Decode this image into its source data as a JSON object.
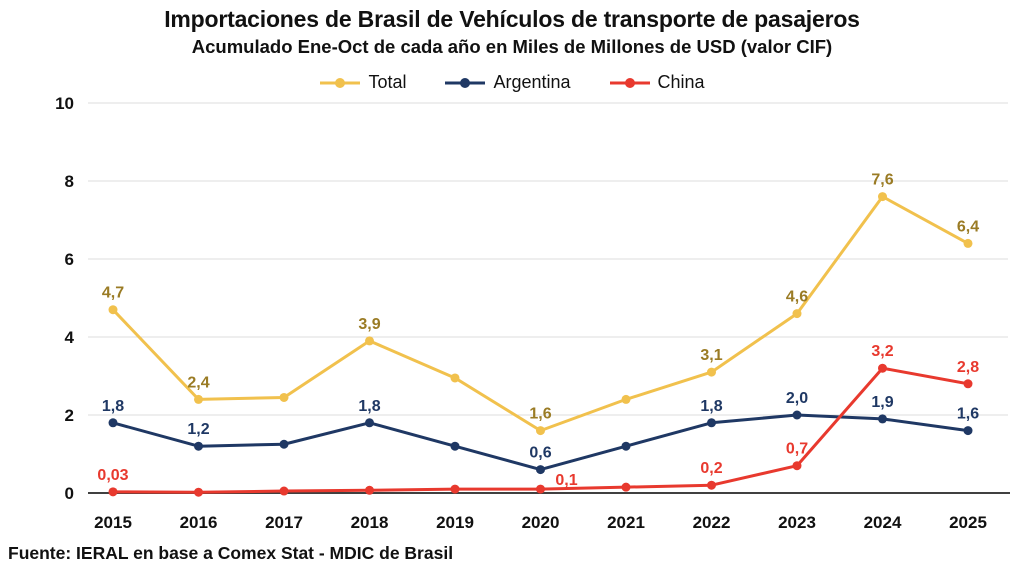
{
  "header": {
    "title": "Importaciones de Brasil de Vehículos de transporte de pasajeros",
    "subtitle": "Acumulado Ene-Oct de cada año en Miles de Millones de USD (valor CIF)"
  },
  "footer": {
    "source": "Fuente: IERAL en base a Comex Stat - MDIC de Brasil"
  },
  "chart_data": {
    "type": "line",
    "title": "Importaciones de Brasil de Vehículos de transporte de pasajeros",
    "subtitle": "Acumulado Ene-Oct de cada año en Miles de Millones de USD (valor CIF)",
    "xlabel": "",
    "ylabel": "",
    "categories": [
      "2015",
      "2016",
      "2017",
      "2018",
      "2019",
      "2020",
      "2021",
      "2022",
      "2023",
      "2024",
      "2025"
    ],
    "series": [
      {
        "name": "Total",
        "color": "#F1C14D",
        "label_color": "#9A7B24",
        "values": [
          4.7,
          2.4,
          2.45,
          3.9,
          2.95,
          1.6,
          2.4,
          3.1,
          4.6,
          7.6,
          6.4
        ],
        "labels": [
          "4,7",
          "2,4",
          "",
          "3,9",
          "",
          "1,6",
          "",
          "3,1",
          "4,6",
          "7,6",
          "6,4"
        ]
      },
      {
        "name": "Argentina",
        "color": "#1F3864",
        "label_color": "#1F3864",
        "values": [
          1.8,
          1.2,
          1.25,
          1.8,
          1.2,
          0.6,
          1.2,
          1.8,
          2.0,
          1.9,
          1.6
        ],
        "labels": [
          "1,8",
          "1,2",
          "",
          "1,8",
          "",
          "0,6",
          "",
          "1,8",
          "2,0",
          "1,9",
          "1,6"
        ]
      },
      {
        "name": "China",
        "color": "#E8392E",
        "label_color": "#E8392E",
        "values": [
          0.03,
          0.02,
          0.05,
          0.07,
          0.1,
          0.1,
          0.15,
          0.2,
          0.7,
          3.2,
          2.8
        ],
        "labels": [
          "0,03",
          "",
          "",
          "",
          "",
          "0,1",
          "",
          "0,2",
          "0,7",
          "3,2",
          "2,8"
        ]
      }
    ],
    "ylim": [
      0,
      10
    ],
    "yticks": [
      0,
      2,
      4,
      6,
      8,
      10
    ],
    "grid": true,
    "grid_color": "#DCDCDC",
    "axis_color": "#404040",
    "legend_position": "top",
    "decimal_separator": ",",
    "label_offsets": {
      "China": {
        "5": [
          26,
          -4
        ]
      }
    }
  }
}
